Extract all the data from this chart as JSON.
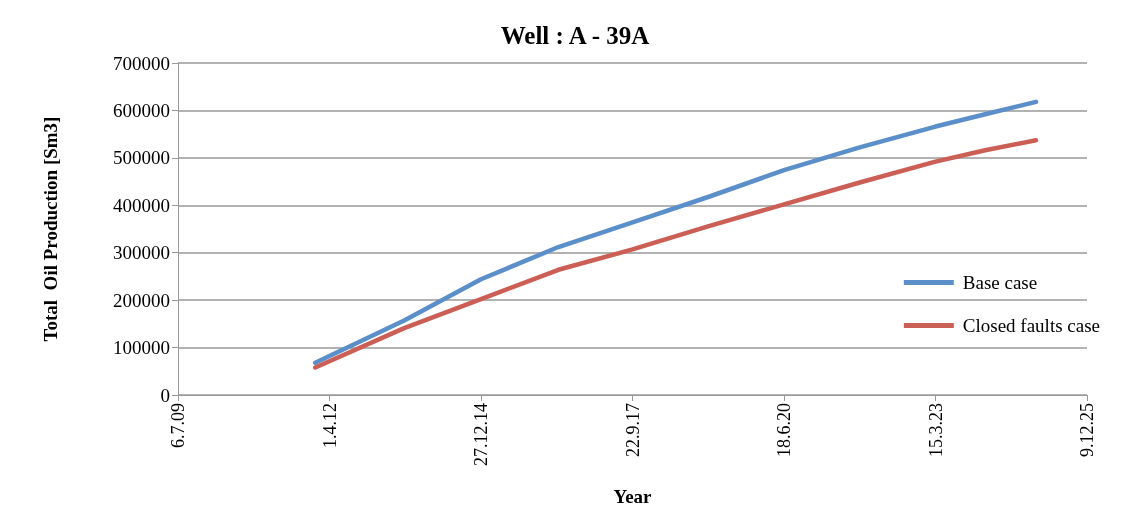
{
  "chart_data": {
    "type": "line",
    "title": "Well : A - 39A",
    "xlabel": "Year",
    "ylabel": "Total  Oil Production [Sm3]",
    "x": [
      "2011-12-29",
      "2013-08-07",
      "2014-12-27",
      "2016-05-21",
      "2017-09-22",
      "2019-02-08",
      "2020-06-18",
      "2021-10-31",
      "2023-03-15",
      "2024-02-06",
      "2025-01-06"
    ],
    "series": [
      {
        "name": "Base case",
        "color": "#5b8fc9",
        "values": [
          68000,
          157000,
          244000,
          312000,
          364000,
          418000,
          474000,
          522000,
          566000,
          592000,
          618000
        ]
      },
      {
        "name": "Closed faults case",
        "color": "#cc5f55",
        "values": [
          58000,
          141000,
          202000,
          264000,
          307000,
          356000,
          402000,
          448000,
          492000,
          516000,
          537000
        ]
      }
    ],
    "xlim": [
      "2009-07-06",
      "2025-12-09"
    ],
    "xticks": [
      {
        "value": "2009-07-06",
        "label": "6.7.09"
      },
      {
        "value": "2012-04-01",
        "label": "1.4.12"
      },
      {
        "value": "2014-12-27",
        "label": "27.12.14"
      },
      {
        "value": "2017-09-22",
        "label": "22.9.17"
      },
      {
        "value": "2020-06-18",
        "label": "18.6.20"
      },
      {
        "value": "2023-03-15",
        "label": "15.3.23"
      },
      {
        "value": "2025-12-09",
        "label": "9.12.25"
      }
    ],
    "ylim": [
      0,
      700000
    ],
    "yticks": [
      0,
      100000,
      200000,
      300000,
      400000,
      500000,
      600000,
      700000
    ],
    "grid": "y",
    "legend": "right",
    "marker": "none",
    "line_style": "solid"
  }
}
